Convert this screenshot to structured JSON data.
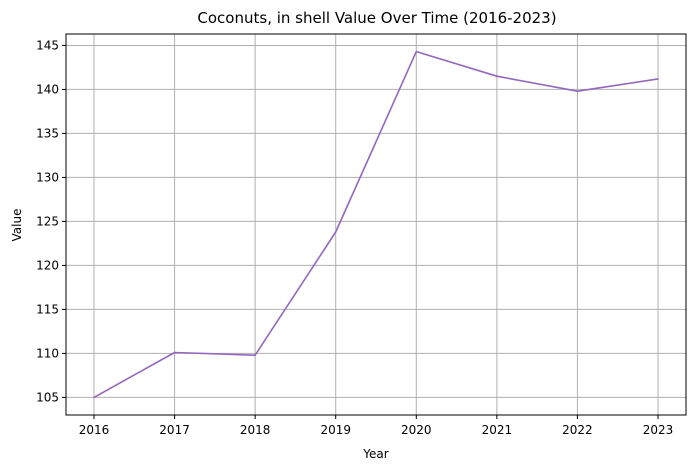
{
  "chart_data": {
    "type": "line",
    "title": "Coconuts, in shell Value Over Time (2016-2023)",
    "xlabel": "Year",
    "ylabel": "Value",
    "x": [
      "2016",
      "2017",
      "2018",
      "2019",
      "2020",
      "2021",
      "2022",
      "2023"
    ],
    "series": [
      {
        "values": [
          105.0,
          110.1,
          109.8,
          123.8,
          144.3,
          141.5,
          139.8,
          141.2
        ]
      }
    ],
    "yticks": [
      105,
      110,
      115,
      120,
      125,
      130,
      135,
      140,
      145
    ],
    "ylim": [
      103.0,
      146.3
    ],
    "grid": true,
    "colors": {
      "line": "#9467bd",
      "grid": "#b0b0b0"
    }
  }
}
